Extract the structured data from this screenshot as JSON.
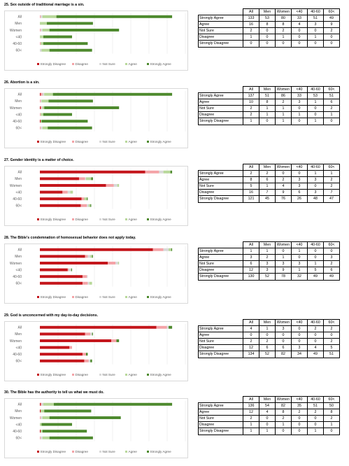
{
  "colors": {
    "strongly_disagree": "#c4161c",
    "disagree": "#f4a3a7",
    "not_sure": "#d9d9d9",
    "agree": "#b8d89a",
    "strongly_agree": "#4e8a2e",
    "gridline": "#e6e6e6"
  },
  "table_columns": [
    "All",
    "Men",
    "Women",
    "<40",
    "40-60",
    "60<"
  ],
  "response_rows": [
    "Strongly Agree",
    "Agree",
    "Not Sure",
    "Disagree",
    "Strongly Disagree"
  ],
  "legend": [
    "Strongly Disagree",
    "Disagree",
    "Not Sure",
    "Agree",
    "Strongly Agree"
  ],
  "chart_data": [
    {
      "type": "bar",
      "title": "25. Sex outside of traditional marriage is a sin.",
      "categories": [
        "All",
        "Men",
        "Women",
        "<40",
        "40-60",
        "60<"
      ],
      "series": [
        {
          "name": "Strongly Disagree",
          "values": [
            0,
            0,
            0,
            0,
            0,
            0
          ]
        },
        {
          "name": "Disagree",
          "values": [
            1,
            0,
            1,
            0,
            1,
            0
          ]
        },
        {
          "name": "Not Sure",
          "values": [
            2,
            0,
            2,
            0,
            0,
            2
          ]
        },
        {
          "name": "Agree",
          "values": [
            16,
            8,
            8,
            4,
            3,
            9
          ]
        },
        {
          "name": "Strongly Agree",
          "values": [
            133,
            53,
            80,
            33,
            51,
            49
          ]
        }
      ]
    },
    {
      "type": "bar",
      "title": "26. Abortion is a sin.",
      "categories": [
        "All",
        "Men",
        "Women",
        "<40",
        "40-60",
        "60<"
      ],
      "series": [
        {
          "name": "Strongly Disagree",
          "values": [
            1,
            0,
            1,
            0,
            1,
            0
          ]
        },
        {
          "name": "Disagree",
          "values": [
            2,
            1,
            1,
            1,
            0,
            1
          ]
        },
        {
          "name": "Not Sure",
          "values": [
            2,
            1,
            1,
            0,
            0,
            2
          ]
        },
        {
          "name": "Agree",
          "values": [
            10,
            8,
            2,
            3,
            1,
            6
          ]
        },
        {
          "name": "Strongly Agree",
          "values": [
            137,
            51,
            86,
            33,
            53,
            51
          ]
        }
      ]
    },
    {
      "type": "bar",
      "title": "27. Gender identity is a matter of choice.",
      "categories": [
        "All",
        "Men",
        "Women",
        "<40",
        "40-60",
        "60<"
      ],
      "series": [
        {
          "name": "Strongly Disagree",
          "values": [
            121,
            45,
            76,
            26,
            48,
            47
          ]
        },
        {
          "name": "Disagree",
          "values": [
            16,
            7,
            9,
            6,
            3,
            7
          ]
        },
        {
          "name": "Not Sure",
          "values": [
            5,
            1,
            4,
            3,
            0,
            2
          ]
        },
        {
          "name": "Agree",
          "values": [
            8,
            6,
            2,
            3,
            3,
            2
          ]
        },
        {
          "name": "Strongly Agree",
          "values": [
            2,
            2,
            0,
            0,
            1,
            1
          ]
        }
      ]
    },
    {
      "type": "bar",
      "title": "28. The Bible's condemnation of homosexual behavior does not apply today.",
      "categories": [
        "All",
        "Men",
        "Women",
        "<40",
        "40-60",
        "60<"
      ],
      "series": [
        {
          "name": "Strongly Disagree",
          "values": [
            130,
            52,
            78,
            32,
            49,
            49
          ]
        },
        {
          "name": "Disagree",
          "values": [
            12,
            3,
            9,
            1,
            5,
            6
          ]
        },
        {
          "name": "Not Sure",
          "values": [
            6,
            3,
            3,
            3,
            1,
            2
          ]
        },
        {
          "name": "Agree",
          "values": [
            3,
            2,
            1,
            0,
            0,
            3
          ]
        },
        {
          "name": "Strongly Agree",
          "values": [
            1,
            1,
            0,
            1,
            0,
            0
          ]
        }
      ]
    },
    {
      "type": "bar",
      "title": "29. God is unconcerned with my day-to-day decisions.",
      "categories": [
        "All",
        "Men",
        "Women",
        "<40",
        "40-60",
        "60<"
      ],
      "series": [
        {
          "name": "Strongly Disagree",
          "values": [
            134,
            52,
            82,
            34,
            49,
            51
          ]
        },
        {
          "name": "Disagree",
          "values": [
            12,
            6,
            6,
            3,
            4,
            5
          ]
        },
        {
          "name": "Not Sure",
          "values": [
            2,
            2,
            0,
            0,
            0,
            2
          ]
        },
        {
          "name": "Agree",
          "values": [
            0,
            0,
            0,
            0,
            0,
            0
          ]
        },
        {
          "name": "Strongly Agree",
          "values": [
            4,
            1,
            3,
            0,
            2,
            2
          ]
        }
      ]
    },
    {
      "type": "bar",
      "title": "30. The Bible has the authority to tell us what we must do.",
      "categories": [
        "All",
        "Men",
        "Women",
        "<40",
        "40-60",
        "60<"
      ],
      "series": [
        {
          "name": "Strongly Disagree",
          "values": [
            1,
            1,
            0,
            0,
            1,
            0
          ]
        },
        {
          "name": "Disagree",
          "values": [
            1,
            0,
            1,
            0,
            0,
            1
          ]
        },
        {
          "name": "Not Sure",
          "values": [
            2,
            0,
            2,
            0,
            0,
            2
          ]
        },
        {
          "name": "Agree",
          "values": [
            12,
            4,
            8,
            2,
            2,
            8
          ]
        },
        {
          "name": "Strongly Agree",
          "values": [
            136,
            54,
            82,
            35,
            51,
            50
          ]
        }
      ]
    }
  ]
}
